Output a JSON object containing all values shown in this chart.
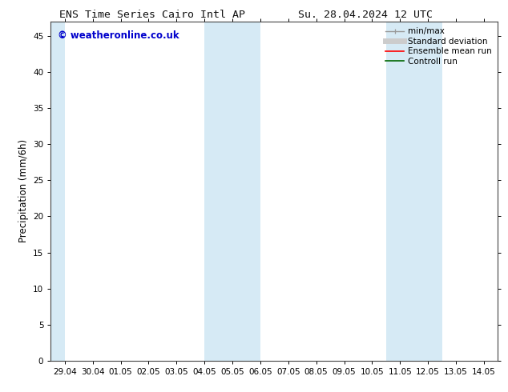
{
  "title_left": "ENS Time Series Cairo Intl AP",
  "title_right": "Su. 28.04.2024 12 UTC",
  "ylabel": "Precipitation (mm/6h)",
  "watermark": "© weatheronline.co.uk",
  "x_tick_labels": [
    "29.04",
    "30.04",
    "01.05",
    "02.05",
    "03.05",
    "04.05",
    "05.05",
    "06.05",
    "07.05",
    "08.05",
    "09.05",
    "10.05",
    "11.05",
    "12.05",
    "13.05",
    "14.05"
  ],
  "x_tick_positions": [
    0,
    1,
    2,
    3,
    4,
    5,
    6,
    7,
    8,
    9,
    10,
    11,
    12,
    13,
    14,
    15
  ],
  "xlim": [
    -0.5,
    15.5
  ],
  "ylim": [
    0,
    47
  ],
  "yticks": [
    0,
    5,
    10,
    15,
    20,
    25,
    30,
    35,
    40,
    45
  ],
  "shaded_bands": [
    {
      "x_start": -0.5,
      "x_end": 0.0
    },
    {
      "x_start": 5.0,
      "x_end": 7.0
    },
    {
      "x_start": 11.5,
      "x_end": 13.5
    }
  ],
  "band_color": "#d6eaf5",
  "background_color": "#ffffff",
  "legend_items": [
    {
      "label": "min/max",
      "color": "#999999",
      "lw": 1.0,
      "style": "line_caps"
    },
    {
      "label": "Standard deviation",
      "color": "#cccccc",
      "lw": 5,
      "style": "line"
    },
    {
      "label": "Ensemble mean run",
      "color": "#ff0000",
      "lw": 1.2,
      "style": "line"
    },
    {
      "label": "Controll run",
      "color": "#006600",
      "lw": 1.2,
      "style": "line"
    }
  ],
  "title_fontsize": 9.5,
  "axis_label_fontsize": 8.5,
  "tick_fontsize": 7.5,
  "legend_fontsize": 7.5,
  "watermark_color": "#0000cc",
  "watermark_fontsize": 8.5,
  "spine_color": "#444444",
  "spine_lw": 0.8
}
